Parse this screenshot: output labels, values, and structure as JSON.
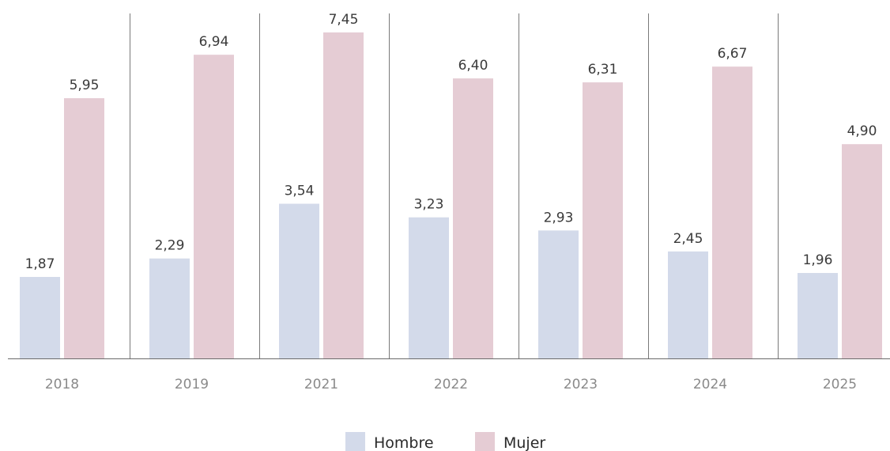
{
  "chart_data": {
    "type": "bar",
    "categories": [
      "2018",
      "2019",
      "2021",
      "2022",
      "2023",
      "2024",
      "2025"
    ],
    "series": [
      {
        "name": "Hombre",
        "values": [
          1.87,
          2.29,
          3.54,
          3.23,
          2.93,
          2.45,
          1.96
        ],
        "labels": [
          "1,87",
          "2,29",
          "3,54",
          "3,23",
          "2,93",
          "2,45",
          "1,96"
        ],
        "color": "#d3daea"
      },
      {
        "name": "Mujer",
        "values": [
          5.95,
          6.94,
          7.45,
          6.4,
          6.31,
          6.67,
          4.9
        ],
        "labels": [
          "5,95",
          "6,94",
          "7,45",
          "6,40",
          "6,31",
          "6,67",
          "4,90"
        ],
        "color": "#e5ccd4"
      }
    ],
    "title": "",
    "xlabel": "",
    "ylabel": "",
    "ylim": [
      0,
      7.45
    ],
    "grid": false,
    "category_separators": true,
    "legend": "bottom-center"
  }
}
